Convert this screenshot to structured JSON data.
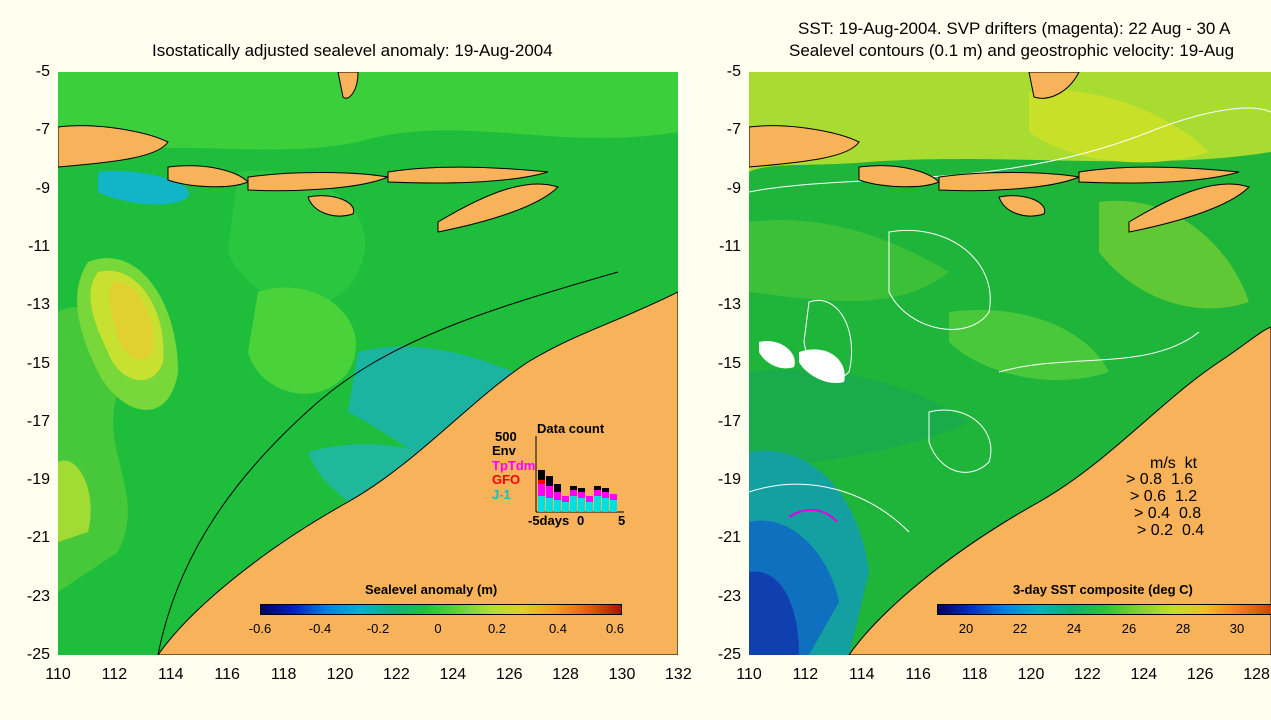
{
  "left": {
    "title": "Isostatically adjusted sealevel anomaly: 19-Aug-2004",
    "colorbar_title": "Sealevel anomaly (m)",
    "colorbar_labels": [
      "-0.6",
      "-0.4",
      "-0.2",
      "0",
      "0.2",
      "0.4",
      "0.6"
    ],
    "inset": {
      "title": "Data count",
      "scale": "500",
      "legend": [
        {
          "label": "Env",
          "color": "#000000"
        },
        {
          "label": "TpTdm",
          "color": "#ff00ff"
        },
        {
          "label": "GFO",
          "color": "#ff0000"
        },
        {
          "label": "J-1",
          "color": "#00e0e0"
        }
      ],
      "x_labels": [
        "-5days",
        "0",
        "5"
      ]
    }
  },
  "right": {
    "title_line1": "SST: 19-Aug-2004. SVP drifters (magenta): 22 Aug - 30 A",
    "title_line2": "Sealevel contours (0.1 m) and geostrophic velocity: 19-Aug",
    "colorbar_title": "3-day SST composite (deg C)",
    "colorbar_labels": [
      "20",
      "22",
      "24",
      "26",
      "28",
      "30"
    ],
    "speed_legend": {
      "header": [
        "m/s",
        "kt"
      ],
      "rows": [
        [
          "0.8",
          "1.6"
        ],
        [
          "0.6",
          "1.2"
        ],
        [
          "0.4",
          "0.8"
        ],
        [
          "0.2",
          "0.4"
        ]
      ]
    }
  },
  "y_ticks": [
    "-5",
    "-7",
    "-9",
    "-11",
    "-13",
    "-15",
    "-17",
    "-19",
    "-21",
    "-23",
    "-25"
  ],
  "left_x_ticks": [
    "110",
    "112",
    "114",
    "116",
    "118",
    "120",
    "122",
    "124",
    "126",
    "128",
    "130",
    "132"
  ],
  "right_x_ticks": [
    "110",
    "112",
    "114",
    "116",
    "118",
    "120",
    "122",
    "124",
    "126",
    "128"
  ],
  "colors": {
    "background": "#fffff0",
    "land": "#f7b25a",
    "ocean_left": "#1ebe3c",
    "ocean_right": "#1fb43a",
    "anomaly_high": "#e0d030",
    "sst_warm": "#b8e020",
    "sst_cold": "#1040b0"
  }
}
